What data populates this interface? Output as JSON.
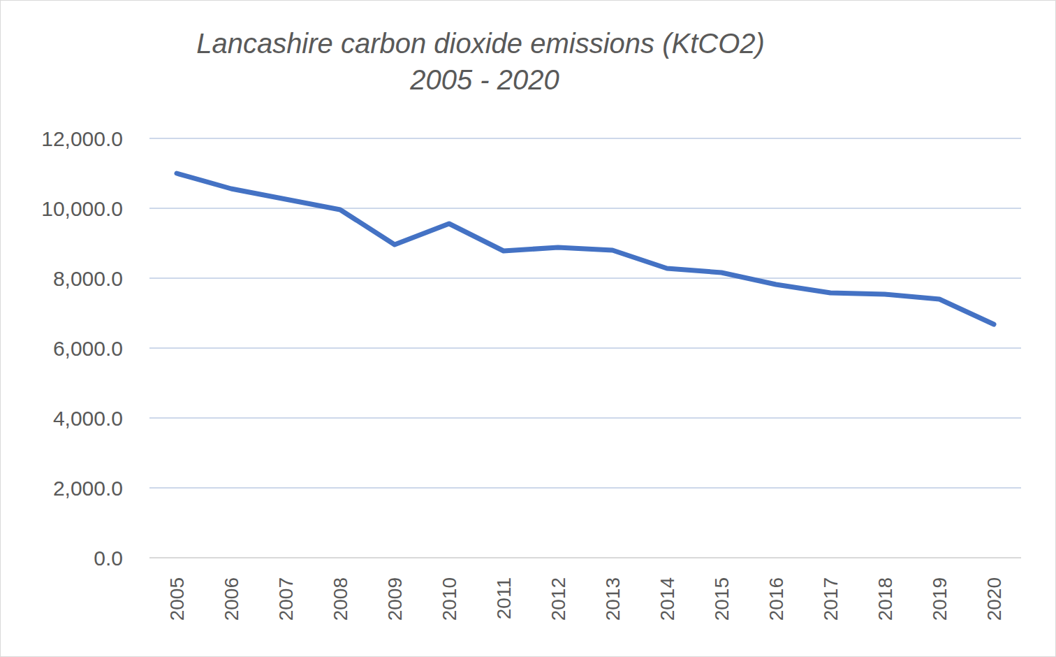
{
  "chart_data": {
    "type": "line",
    "title": "Lancashire carbon dioxide emissions (KtCO2)\n2005 - 2020",
    "categories": [
      "2005",
      "2006",
      "2007",
      "2008",
      "2009",
      "2010",
      "2011",
      "2012",
      "2013",
      "2014",
      "2015",
      "2016",
      "2017",
      "2018",
      "2019",
      "2020"
    ],
    "values": [
      11000,
      10560,
      10260,
      9960,
      8960,
      9560,
      8780,
      8880,
      8800,
      8280,
      8160,
      7820,
      7580,
      7540,
      7400,
      6680
    ],
    "color": "#4472c4",
    "ylim": [
      0,
      12000
    ],
    "yticks": [
      {
        "value": 0,
        "label": "0.0"
      },
      {
        "value": 2000,
        "label": "2,000.0"
      },
      {
        "value": 4000,
        "label": "4,000.0"
      },
      {
        "value": 6000,
        "label": "6,000.0"
      },
      {
        "value": 8000,
        "label": "8,000.0"
      },
      {
        "value": 10000,
        "label": "10,000.0"
      },
      {
        "value": 12000,
        "label": "12,000.0"
      }
    ],
    "grid": true
  }
}
